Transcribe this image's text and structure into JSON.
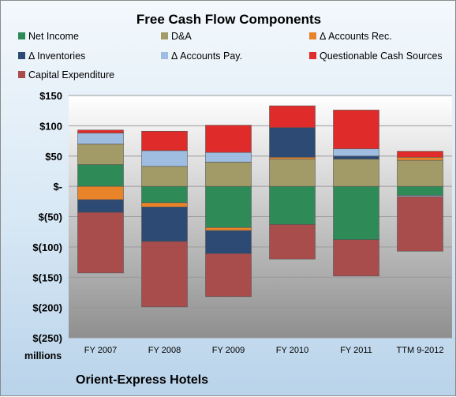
{
  "chart_data": {
    "type": "bar",
    "stacked": true,
    "title": "Free Cash Flow Components",
    "units_label": "millions",
    "source_label": "Orient-Express Hotels",
    "categories": [
      "FY 2007",
      "FY 2008",
      "FY 2009",
      "FY 2010",
      "FY 2011",
      "TTM 9-2012"
    ],
    "ylim": [
      -250,
      150
    ],
    "yticks": [
      150,
      100,
      50,
      0,
      -50,
      -100,
      -150,
      -200,
      -250
    ],
    "ytick_labels": [
      "$150",
      "$100",
      "$50",
      "$-",
      "$(50)",
      "$(100)",
      "$(150)",
      "$(200)",
      "$(250)"
    ],
    "grid": true,
    "legend_position": "top",
    "series": [
      {
        "name": "Net Income",
        "color": "#2e8b57",
        "values": [
          36,
          -27,
          -68,
          -63,
          -88,
          -15
        ]
      },
      {
        "name": "D&A",
        "color": "#a39b67",
        "values": [
          34,
          33,
          40,
          45,
          45,
          43
        ]
      },
      {
        "name": "Δ Accounts Rec.",
        "color": "#e8832a",
        "values": [
          -22,
          -7,
          -5,
          3,
          0,
          5
        ]
      },
      {
        "name": "Δ Inventories",
        "color": "#2c4a73",
        "values": [
          -21,
          -57,
          -38,
          49,
          5,
          0
        ]
      },
      {
        "name": "Δ Accounts Pay.",
        "color": "#9fbde0",
        "values": [
          18,
          26,
          16,
          0,
          12,
          -2
        ]
      },
      {
        "name": "Questionable Cash Sources",
        "color": "#e02b2b",
        "values": [
          5,
          32,
          45,
          36,
          64,
          10
        ]
      },
      {
        "name": "Capital Expenditure",
        "color": "#a84c4c",
        "values": [
          -100,
          -108,
          -71,
          -57,
          -60,
          -90
        ]
      }
    ]
  }
}
